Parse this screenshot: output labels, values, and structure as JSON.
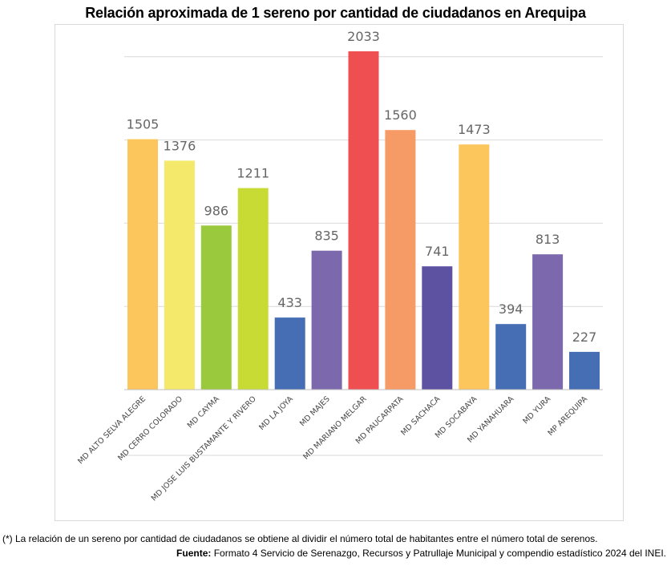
{
  "chart_data": {
    "type": "bar",
    "title": "Relación aproximada de 1 sereno por cantidad de ciudadanos en Arequipa",
    "categories": [
      "MD ALTO SELVA ALEGRE",
      "MD CERRO COLORADO",
      "MD CAYMA",
      "MD JOSE LUIS BUSTAMANTE Y RIVERO",
      "MD LA JOYA",
      "MD MAJES",
      "MD MARIANO MELGAR",
      "MD PAUCARPATA",
      "MD SACHACA",
      "MD SOCABAYA",
      "MD YANAHUARA",
      "MD YURA",
      "MP AREQUIPA"
    ],
    "values": [
      1505,
      1376,
      986,
      1211,
      433,
      835,
      2033,
      1560,
      741,
      1473,
      394,
      813,
      227
    ],
    "colors": [
      "#FDC65D",
      "#F4E96A",
      "#9BC93E",
      "#C7DB34",
      "#456EB5",
      "#7C69AD",
      "#EF4F51",
      "#F69A66",
      "#5D52A2",
      "#FDC65D",
      "#456EB5",
      "#7C69AD",
      "#456EB5"
    ],
    "ylim": [
      0,
      2100
    ],
    "grid": true,
    "xlabel": "",
    "ylabel": ""
  },
  "footnote": "(*) La relación de un sereno por cantidad de ciudadanos se obtiene al dividir el número total de habitantes entre el número total de serenos.",
  "source_label": "Fuente:",
  "source_text": " Formato 4 Servicio de Serenazgo, Recursos y Patrullaje Municipal y compendio estadístico 2024 del INEI."
}
